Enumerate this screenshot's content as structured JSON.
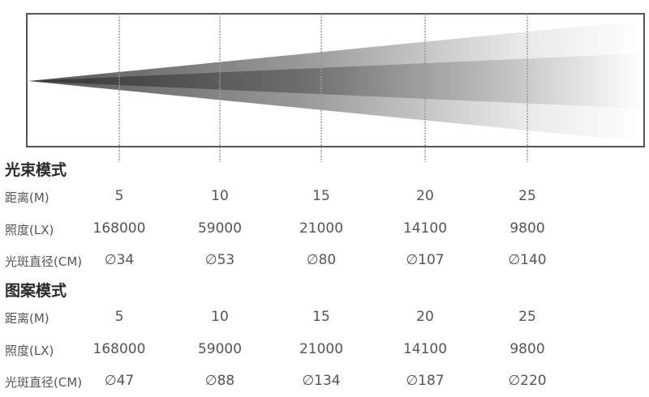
{
  "diagram": {
    "distance_markers": [
      "5",
      "10",
      "15",
      "20",
      "25"
    ]
  },
  "sections": [
    {
      "title": "光束模式",
      "rows": [
        {
          "label": "距离(M)",
          "values": [
            "5",
            "10",
            "15",
            "20",
            "25"
          ]
        },
        {
          "label": "照度(LX)",
          "values": [
            "168000",
            "59000",
            "21000",
            "14100",
            "9800"
          ]
        },
        {
          "label": "光斑直径(CM)",
          "values": [
            "∅34",
            "∅53",
            "∅80",
            "∅107",
            "∅140"
          ]
        }
      ]
    },
    {
      "title": "图案模式",
      "rows": [
        {
          "label": "距离(M)",
          "values": [
            "5",
            "10",
            "15",
            "20",
            "25"
          ]
        },
        {
          "label": "照度(LX)",
          "values": [
            "168000",
            "59000",
            "21000",
            "14100",
            "9800"
          ]
        },
        {
          "label": "光斑直径(CM)",
          "values": [
            "∅47",
            "∅88",
            "∅134",
            "∅187",
            "∅220"
          ]
        }
      ]
    }
  ],
  "colors": {
    "frame": "#555555",
    "beam_dark": "#2e2e2e",
    "beam_light": "#ffffff",
    "marker_line": "#9a9a9a"
  }
}
